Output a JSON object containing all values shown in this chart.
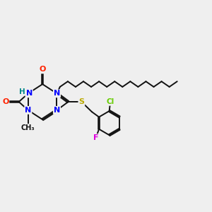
{
  "background_color": "#efefef",
  "figsize": [
    3.0,
    3.0
  ],
  "dpi": 100,
  "atom_colors": {
    "N": "#0000ff",
    "O": "#ff2200",
    "S": "#bbaa00",
    "Cl": "#66cc00",
    "F": "#dd00dd",
    "H": "#008888",
    "C": "#111111"
  },
  "bond_color": "#111111",
  "bond_lw": 1.4
}
